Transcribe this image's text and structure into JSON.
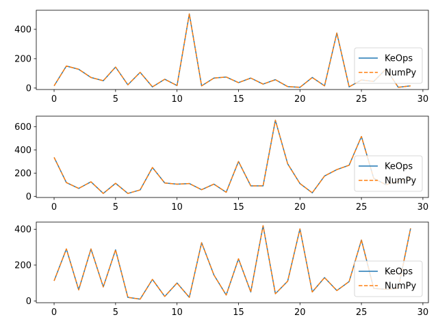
{
  "chart_data": [
    {
      "type": "line",
      "x": [
        0,
        1,
        2,
        3,
        4,
        5,
        6,
        7,
        8,
        9,
        10,
        11,
        12,
        13,
        14,
        15,
        16,
        17,
        18,
        19,
        20,
        21,
        22,
        23,
        24,
        25,
        26,
        27,
        28,
        29
      ],
      "series": [
        {
          "name": "KeOps",
          "color": "#1f77b4",
          "style": "solid",
          "values": [
            15,
            150,
            128,
            72,
            50,
            143,
            22,
            107,
            8,
            60,
            17,
            505,
            15,
            68,
            75,
            37,
            68,
            27,
            57,
            10,
            5,
            72,
            15,
            375,
            8,
            55,
            45,
            130,
            5,
            15
          ]
        },
        {
          "name": "NumPy",
          "color": "#ff7f0e",
          "style": "dashed",
          "values": [
            15,
            150,
            128,
            72,
            50,
            143,
            22,
            107,
            8,
            60,
            17,
            505,
            15,
            68,
            75,
            37,
            68,
            27,
            57,
            10,
            5,
            72,
            15,
            375,
            8,
            55,
            45,
            130,
            5,
            15
          ]
        }
      ],
      "xlim": [
        -1.45,
        30.45
      ],
      "ylim": [
        -10,
        530
      ],
      "xticks": [
        0,
        5,
        10,
        15,
        20,
        25,
        30
      ],
      "yticks": [
        0,
        200,
        400
      ],
      "legend": "lower right",
      "grid": false
    },
    {
      "type": "line",
      "x": [
        0,
        1,
        2,
        3,
        4,
        5,
        6,
        7,
        8,
        9,
        10,
        11,
        12,
        13,
        14,
        15,
        16,
        17,
        18,
        19,
        20,
        21,
        22,
        23,
        24,
        25,
        26,
        27,
        28,
        29
      ],
      "series": [
        {
          "name": "KeOps",
          "color": "#1f77b4",
          "style": "solid",
          "values": [
            335,
            118,
            68,
            125,
            25,
            112,
            25,
            55,
            248,
            115,
            105,
            110,
            57,
            105,
            35,
            300,
            90,
            90,
            655,
            280,
            110,
            30,
            175,
            230,
            268,
            515,
            155,
            100,
            130,
            160
          ]
        },
        {
          "name": "NumPy",
          "color": "#ff7f0e",
          "style": "dashed",
          "values": [
            335,
            118,
            68,
            125,
            25,
            112,
            25,
            55,
            248,
            115,
            105,
            110,
            57,
            105,
            35,
            300,
            90,
            90,
            655,
            280,
            110,
            30,
            175,
            230,
            268,
            515,
            155,
            100,
            130,
            160
          ]
        }
      ],
      "xlim": [
        -1.45,
        30.45
      ],
      "ylim": [
        -10,
        690
      ],
      "xticks": [
        0,
        5,
        10,
        15,
        20,
        25,
        30
      ],
      "yticks": [
        0,
        200,
        400,
        600
      ],
      "legend": "lower right",
      "grid": false
    },
    {
      "type": "line",
      "x": [
        0,
        1,
        2,
        3,
        4,
        5,
        6,
        7,
        8,
        9,
        10,
        11,
        12,
        13,
        14,
        15,
        16,
        17,
        18,
        19,
        20,
        21,
        22,
        23,
        24,
        25,
        26,
        27,
        28,
        29
      ],
      "series": [
        {
          "name": "KeOps",
          "color": "#1f77b4",
          "style": "solid",
          "values": [
            112,
            290,
            62,
            290,
            78,
            285,
            20,
            10,
            120,
            25,
            100,
            20,
            325,
            145,
            33,
            235,
            50,
            420,
            40,
            110,
            402,
            50,
            130,
            58,
            108,
            340,
            70,
            65,
            70,
            405
          ]
        },
        {
          "name": "NumPy",
          "color": "#ff7f0e",
          "style": "dashed",
          "values": [
            112,
            290,
            62,
            290,
            78,
            285,
            20,
            10,
            120,
            25,
            100,
            20,
            325,
            145,
            33,
            235,
            50,
            420,
            40,
            110,
            402,
            50,
            130,
            58,
            108,
            340,
            70,
            65,
            70,
            405
          ]
        }
      ],
      "xlim": [
        -1.45,
        30.45
      ],
      "ylim": [
        -10,
        440
      ],
      "xticks": [
        0,
        5,
        10,
        15,
        20,
        25,
        30
      ],
      "yticks": [
        0,
        200,
        400
      ],
      "legend": "lower right",
      "grid": false
    }
  ]
}
